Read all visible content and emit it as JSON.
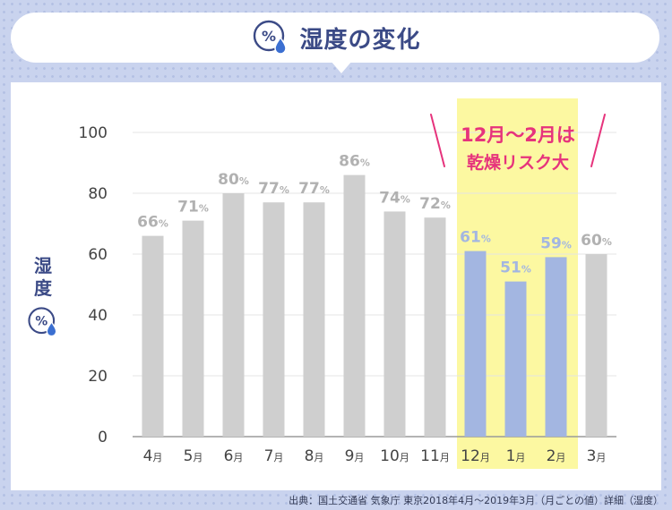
{
  "colors": {
    "grey_bar": "#cfcfcf",
    "blue_bar": "#a3b6e1",
    "highlight": "#fcf8a1",
    "grey_label": "#b1b1b1",
    "blue_label": "#a3b6e1",
    "callout": "#e6337c",
    "axis_text": "#444444",
    "navy": "#3b4a86"
  },
  "icons": {
    "humidity": "percent-droplet-icon"
  },
  "header": {
    "title": "湿度の変化"
  },
  "callout": {
    "line1": "12月〜2月は",
    "line2": "乾燥リスク大"
  },
  "axis": {
    "ylabel_line1": "湿",
    "ylabel_line2": "度"
  },
  "source": "出典：国土交通省 気象庁 東京2018年4月〜2019年3月（月ごとの値）詳細（湿度）",
  "chart_data": {
    "type": "bar",
    "title": "湿度の変化",
    "ylabel": "湿度",
    "xlabel": "",
    "ylim": [
      0,
      100
    ],
    "yticks": [
      0,
      20,
      40,
      60,
      80,
      100
    ],
    "grid": true,
    "categories": [
      "4月",
      "5月",
      "6月",
      "7月",
      "8月",
      "9月",
      "10月",
      "11月",
      "12月",
      "1月",
      "2月",
      "3月"
    ],
    "values": [
      66,
      71,
      80,
      77,
      77,
      86,
      74,
      72,
      61,
      51,
      59,
      60
    ],
    "data_labels": [
      "66%",
      "71%",
      "80%",
      "77%",
      "77%",
      "86%",
      "74%",
      "72%",
      "61%",
      "51%",
      "59%",
      "60%"
    ],
    "highlight_categories": [
      "12月",
      "1月",
      "2月"
    ],
    "annotation": "12月〜2月は 乾燥リスク大"
  }
}
